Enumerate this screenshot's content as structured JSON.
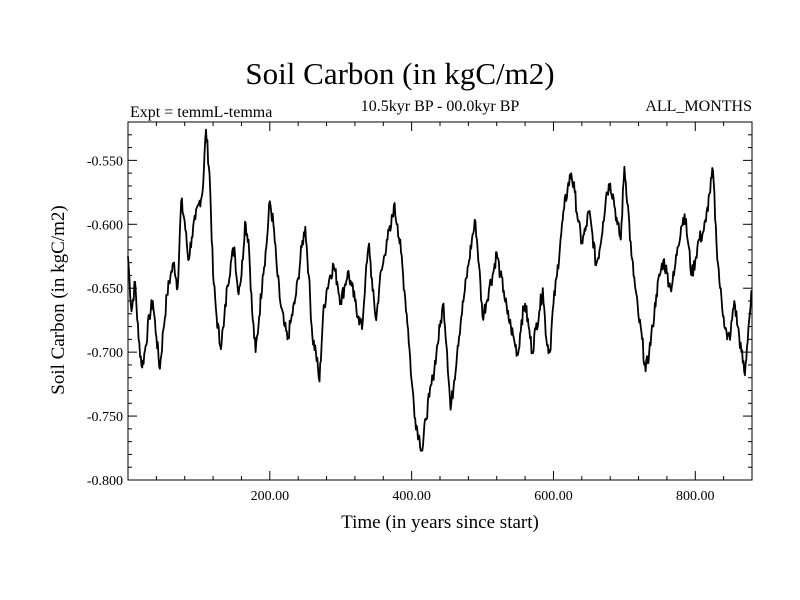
{
  "header": {
    "expt_label": "Expt = temmL-temma",
    "period_label": "10.5kyr BP - 00.0kyr BP",
    "months_label": "ALL_MONTHS"
  },
  "chart_data": {
    "type": "line",
    "title": "Soil Carbon (in kgC/m2)",
    "xlabel": "Time (in years since start)",
    "ylabel": "Soil Carbon (in kgC/m2)",
    "xlim": [
      0,
      880
    ],
    "ylim": [
      -0.8,
      -0.52
    ],
    "x_ticks": [
      200,
      400,
      600,
      800
    ],
    "x_tick_labels": [
      "200.00",
      "400.00",
      "600.00",
      "800.00"
    ],
    "y_ticks": [
      -0.8,
      -0.75,
      -0.7,
      -0.65,
      -0.6,
      -0.55
    ],
    "y_tick_labels": [
      "-0.800",
      "-0.750",
      "-0.700",
      "-0.650",
      "-0.600",
      "-0.550"
    ],
    "grid": false,
    "series": [
      {
        "name": "Soil Carbon",
        "color": "#000000",
        "x": [
          0,
          5,
          10,
          15,
          20,
          25,
          30,
          35,
          40,
          45,
          50,
          55,
          60,
          65,
          70,
          75,
          80,
          85,
          90,
          95,
          100,
          105,
          110,
          115,
          120,
          125,
          130,
          135,
          140,
          145,
          150,
          155,
          160,
          165,
          170,
          175,
          180,
          185,
          190,
          195,
          200,
          205,
          210,
          215,
          220,
          225,
          230,
          235,
          240,
          245,
          250,
          255,
          260,
          265,
          270,
          275,
          280,
          285,
          290,
          295,
          300,
          305,
          310,
          315,
          320,
          325,
          330,
          335,
          340,
          345,
          350,
          355,
          360,
          365,
          370,
          375,
          380,
          385,
          390,
          395,
          400,
          405,
          410,
          415,
          420,
          425,
          430,
          435,
          440,
          445,
          450,
          455,
          460,
          465,
          470,
          475,
          480,
          485,
          490,
          495,
          500,
          505,
          510,
          515,
          520,
          525,
          530,
          535,
          540,
          545,
          550,
          555,
          560,
          565,
          570,
          575,
          580,
          585,
          590,
          595,
          600,
          605,
          610,
          615,
          620,
          625,
          630,
          635,
          640,
          645,
          650,
          655,
          660,
          665,
          670,
          675,
          680,
          685,
          690,
          695,
          700,
          705,
          710,
          715,
          720,
          725,
          730,
          735,
          740,
          745,
          750,
          755,
          760,
          765,
          770,
          775,
          780,
          785,
          790,
          795,
          800,
          805,
          810,
          815,
          820,
          825,
          830,
          835,
          840,
          845,
          850,
          855,
          860,
          865,
          870,
          875,
          880
        ],
        "values": [
          -0.625,
          -0.668,
          -0.645,
          -0.69,
          -0.712,
          -0.695,
          -0.672,
          -0.66,
          -0.688,
          -0.713,
          -0.682,
          -0.655,
          -0.64,
          -0.63,
          -0.65,
          -0.582,
          -0.598,
          -0.628,
          -0.61,
          -0.596,
          -0.584,
          -0.575,
          -0.526,
          -0.56,
          -0.64,
          -0.672,
          -0.695,
          -0.68,
          -0.648,
          -0.63,
          -0.618,
          -0.652,
          -0.64,
          -0.598,
          -0.612,
          -0.668,
          -0.7,
          -0.672,
          -0.64,
          -0.618,
          -0.582,
          -0.6,
          -0.635,
          -0.662,
          -0.678,
          -0.69,
          -0.675,
          -0.662,
          -0.642,
          -0.618,
          -0.602,
          -0.64,
          -0.688,
          -0.7,
          -0.723,
          -0.672,
          -0.652,
          -0.64,
          -0.632,
          -0.645,
          -0.66,
          -0.65,
          -0.637,
          -0.648,
          -0.66,
          -0.672,
          -0.682,
          -0.642,
          -0.615,
          -0.652,
          -0.675,
          -0.645,
          -0.63,
          -0.612,
          -0.605,
          -0.585,
          -0.6,
          -0.622,
          -0.652,
          -0.682,
          -0.722,
          -0.752,
          -0.765,
          -0.777,
          -0.752,
          -0.735,
          -0.72,
          -0.7,
          -0.68,
          -0.662,
          -0.7,
          -0.745,
          -0.722,
          -0.695,
          -0.672,
          -0.652,
          -0.632,
          -0.612,
          -0.598,
          -0.632,
          -0.672,
          -0.662,
          -0.648,
          -0.638,
          -0.622,
          -0.64,
          -0.652,
          -0.67,
          -0.68,
          -0.692,
          -0.702,
          -0.675,
          -0.662,
          -0.68,
          -0.7,
          -0.682,
          -0.668,
          -0.65,
          -0.69,
          -0.7,
          -0.662,
          -0.64,
          -0.612,
          -0.588,
          -0.572,
          -0.56,
          -0.575,
          -0.598,
          -0.615,
          -0.605,
          -0.59,
          -0.608,
          -0.632,
          -0.62,
          -0.598,
          -0.575,
          -0.568,
          -0.58,
          -0.6,
          -0.612,
          -0.555,
          -0.585,
          -0.625,
          -0.648,
          -0.672,
          -0.69,
          -0.715,
          -0.7,
          -0.68,
          -0.655,
          -0.64,
          -0.628,
          -0.638,
          -0.65,
          -0.64,
          -0.618,
          -0.602,
          -0.592,
          -0.615,
          -0.64,
          -0.628,
          -0.612,
          -0.608,
          -0.598,
          -0.576,
          -0.558,
          -0.615,
          -0.65,
          -0.672,
          -0.69,
          -0.685,
          -0.66,
          -0.68,
          -0.7,
          -0.718,
          -0.68,
          -0.652
        ]
      }
    ]
  }
}
